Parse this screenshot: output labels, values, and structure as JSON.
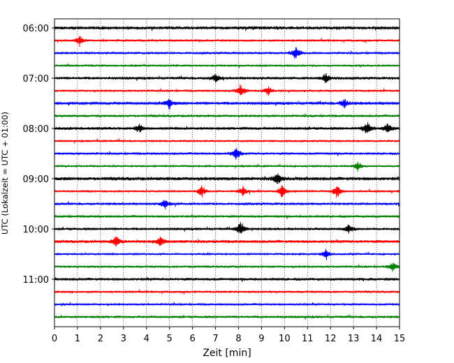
{
  "chart_data": {
    "type": "line",
    "title": "",
    "xlabel": "Zeit  [min]",
    "ylabel": "UTC (Lokalzeit = UTC + 01:00)",
    "xlim": [
      0,
      15
    ],
    "x_ticks": [
      0,
      1,
      2,
      3,
      4,
      5,
      6,
      7,
      8,
      9,
      10,
      11,
      12,
      13,
      14,
      15
    ],
    "x_tick_labels": [
      "0",
      "1",
      "2",
      "3",
      "4",
      "5",
      "6",
      "7",
      "8",
      "9",
      "10",
      "11",
      "12",
      "13",
      "14",
      "15"
    ],
    "y_tick_labels": [
      "06:00",
      "07:00",
      "08:00",
      "09:00",
      "10:00",
      "11:00"
    ],
    "y_tick_trace_index": [
      0,
      4,
      8,
      12,
      16,
      20
    ],
    "trace_minutes": 15,
    "trace_start": "06:00",
    "trace_count": 24,
    "trace_colors": [
      "#000000",
      "#ff0000",
      "#0000ff",
      "#008000"
    ],
    "grid": {
      "vertical": true,
      "style": "dotted"
    },
    "series_type": "helicorder",
    "events": [
      {
        "trace": 1,
        "minute": 1.1,
        "amp": 2.0
      },
      {
        "trace": 2,
        "minute": 10.5,
        "amp": 3.0
      },
      {
        "trace": 4,
        "minute": 7.0,
        "amp": 2.0
      },
      {
        "trace": 4,
        "minute": 11.8,
        "amp": 2.5
      },
      {
        "trace": 5,
        "minute": 8.1,
        "amp": 3.0
      },
      {
        "trace": 5,
        "minute": 9.3,
        "amp": 2.0
      },
      {
        "trace": 6,
        "minute": 5.0,
        "amp": 2.0
      },
      {
        "trace": 6,
        "minute": 12.6,
        "amp": 2.0
      },
      {
        "trace": 8,
        "minute": 13.6,
        "amp": 3.0
      },
      {
        "trace": 8,
        "minute": 14.5,
        "amp": 2.5
      },
      {
        "trace": 8,
        "minute": 3.7,
        "amp": 1.8
      },
      {
        "trace": 10,
        "minute": 7.9,
        "amp": 3.0
      },
      {
        "trace": 11,
        "minute": 13.2,
        "amp": 2.0
      },
      {
        "trace": 12,
        "minute": 9.7,
        "amp": 2.5
      },
      {
        "trace": 13,
        "minute": 6.4,
        "amp": 3.0
      },
      {
        "trace": 13,
        "minute": 8.2,
        "amp": 2.2
      },
      {
        "trace": 13,
        "minute": 9.9,
        "amp": 2.8
      },
      {
        "trace": 13,
        "minute": 12.3,
        "amp": 3.0
      },
      {
        "trace": 14,
        "minute": 4.8,
        "amp": 1.8
      },
      {
        "trace": 16,
        "minute": 8.1,
        "amp": 3.2
      },
      {
        "trace": 16,
        "minute": 12.8,
        "amp": 2.0
      },
      {
        "trace": 17,
        "minute": 2.7,
        "amp": 2.5
      },
      {
        "trace": 17,
        "minute": 4.6,
        "amp": 2.0
      },
      {
        "trace": 18,
        "minute": 11.8,
        "amp": 2.0
      },
      {
        "trace": 19,
        "minute": 14.7,
        "amp": 2.0
      }
    ]
  }
}
